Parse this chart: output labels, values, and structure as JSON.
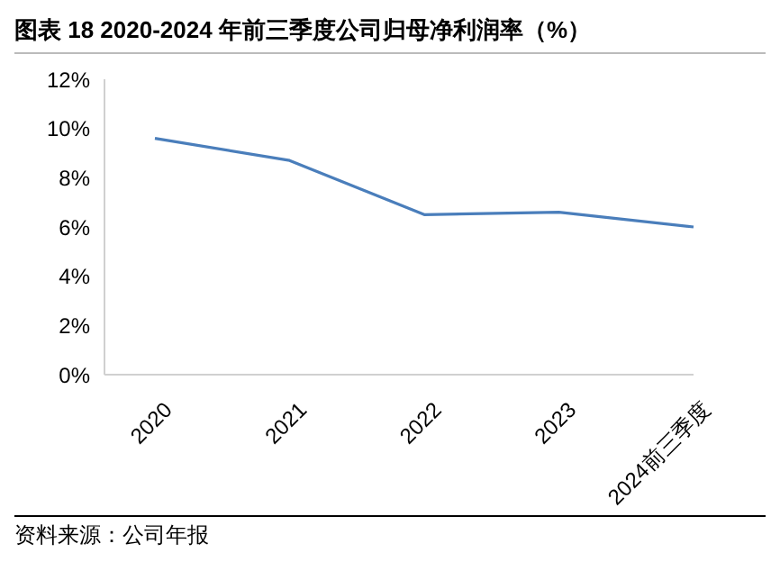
{
  "chart_data": {
    "type": "line",
    "title": "图表 18 2020-2024 年前三季度公司归母净利润率（%）",
    "categories": [
      "2020",
      "2021",
      "2022",
      "2023",
      "2024前三季度"
    ],
    "series": [
      {
        "color": "#4a7ebb",
        "values": [
          9.6,
          8.7,
          6.5,
          6.6,
          6.0
        ]
      }
    ],
    "ylim": [
      0,
      12
    ],
    "yticks": [
      {
        "value": 0,
        "label": "0%"
      },
      {
        "value": 2,
        "label": "2%"
      },
      {
        "value": 4,
        "label": "4%"
      },
      {
        "value": 6,
        "label": "6%"
      },
      {
        "value": 8,
        "label": "8%"
      },
      {
        "value": 10,
        "label": "10%"
      },
      {
        "value": 12,
        "label": "12%"
      }
    ],
    "annotations": [
      "资料来源：公司年报"
    ],
    "grid": false,
    "legend": false,
    "marker": "none",
    "line_style": "solid"
  }
}
